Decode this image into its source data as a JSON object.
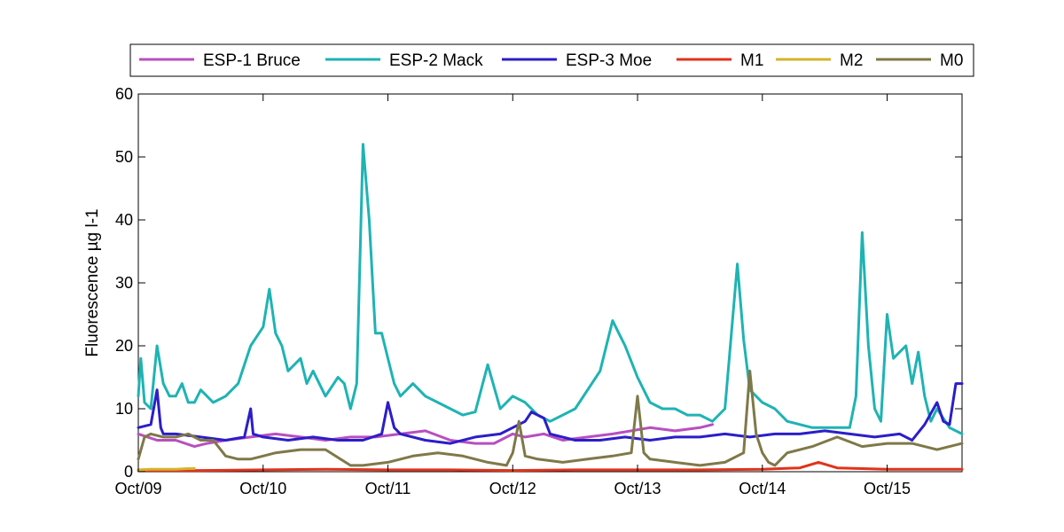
{
  "chart_data": {
    "type": "line",
    "title": "",
    "xlabel": "",
    "ylabel": "Fluorescence µg l-1",
    "ylim": [
      0,
      60
    ],
    "yticks": [
      0,
      10,
      20,
      30,
      40,
      50,
      60
    ],
    "xlim": [
      0,
      6.6
    ],
    "xtick_positions": [
      0,
      1,
      2,
      3,
      4,
      5,
      6
    ],
    "xtick_labels": [
      "Oct/09",
      "Oct/10",
      "Oct/11",
      "Oct/12",
      "Oct/13",
      "Oct/14",
      "Oct/15"
    ],
    "legend_position": "top, outside",
    "grid": false,
    "series": [
      {
        "name": "ESP-1 Bruce",
        "color": "#b84fc0",
        "x": [
          0,
          0.15,
          0.3,
          0.45,
          0.55,
          0.7,
          0.9,
          1.1,
          1.3,
          1.5,
          1.7,
          1.9,
          2.1,
          2.3,
          2.5,
          2.7,
          2.85,
          3.0,
          3.1,
          3.25,
          3.4,
          3.6,
          3.8,
          3.95,
          4.1,
          4.3,
          4.5,
          4.6
        ],
        "y": [
          6,
          5,
          5,
          4,
          4.5,
          5,
          5.5,
          6,
          5.5,
          5,
          5.5,
          5.5,
          6,
          6.5,
          5,
          4.5,
          4.5,
          6,
          5.5,
          6,
          5,
          5.5,
          6,
          6.5,
          7,
          6.5,
          7,
          7.5
        ]
      },
      {
        "name": "ESP-2 Mack",
        "color": "#1fb3b3",
        "x": [
          0,
          0.02,
          0.05,
          0.1,
          0.15,
          0.2,
          0.25,
          0.3,
          0.35,
          0.4,
          0.45,
          0.5,
          0.6,
          0.7,
          0.8,
          0.9,
          1.0,
          1.05,
          1.1,
          1.15,
          1.2,
          1.3,
          1.35,
          1.4,
          1.5,
          1.6,
          1.65,
          1.7,
          1.75,
          1.8,
          1.85,
          1.9,
          1.95,
          2.0,
          2.05,
          2.1,
          2.2,
          2.3,
          2.4,
          2.5,
          2.6,
          2.7,
          2.8,
          2.9,
          3.0,
          3.1,
          3.2,
          3.3,
          3.5,
          3.7,
          3.8,
          3.85,
          3.9,
          4.0,
          4.1,
          4.2,
          4.3,
          4.4,
          4.5,
          4.6,
          4.7,
          4.8,
          4.85,
          4.9,
          5.0,
          5.1,
          5.2,
          5.4,
          5.6,
          5.7,
          5.75,
          5.8,
          5.85,
          5.9,
          5.95,
          6.0,
          6.05,
          6.1,
          6.15,
          6.2,
          6.25,
          6.3,
          6.35,
          6.4,
          6.5,
          6.6
        ],
        "y": [
          12,
          18,
          11,
          10,
          20,
          14,
          12,
          12,
          14,
          11,
          11,
          13,
          11,
          12,
          14,
          20,
          23,
          29,
          22,
          20,
          16,
          18,
          14,
          16,
          12,
          15,
          14,
          10,
          14,
          52,
          40,
          22,
          22,
          18,
          14,
          12,
          14,
          12,
          11,
          10,
          9,
          9.5,
          17,
          10,
          12,
          11,
          9,
          8,
          10,
          16,
          24,
          22,
          20,
          15,
          11,
          10,
          10,
          9,
          9,
          8,
          10,
          33,
          21,
          13,
          11,
          10,
          8,
          7,
          7,
          7,
          12,
          38,
          20,
          10,
          8,
          25,
          18,
          19,
          20,
          14,
          19,
          12,
          8,
          10,
          7,
          6
        ]
      },
      {
        "name": "ESP-3 Moe",
        "color": "#2b1ec8",
        "x": [
          0,
          0.1,
          0.15,
          0.18,
          0.2,
          0.3,
          0.5,
          0.7,
          0.85,
          0.9,
          0.92,
          1.0,
          1.2,
          1.4,
          1.6,
          1.8,
          1.95,
          2.0,
          2.05,
          2.1,
          2.3,
          2.5,
          2.7,
          2.9,
          3.0,
          3.1,
          3.15,
          3.25,
          3.3,
          3.5,
          3.7,
          3.9,
          4.1,
          4.3,
          4.5,
          4.7,
          4.9,
          5.1,
          5.3,
          5.5,
          5.7,
          5.9,
          6.1,
          6.2,
          6.3,
          6.4,
          6.45,
          6.5,
          6.55,
          6.6
        ],
        "y": [
          7,
          7.5,
          13,
          7,
          6,
          6,
          5.5,
          5,
          5.5,
          10,
          6,
          5.5,
          5,
          5.5,
          5,
          5,
          6,
          11,
          7,
          6,
          5,
          4.5,
          5.5,
          6,
          7,
          8,
          9.5,
          8.5,
          6,
          5,
          5,
          5.5,
          5,
          5.5,
          5.5,
          6,
          5.5,
          6,
          6,
          6.5,
          6,
          5.5,
          6,
          5,
          7.5,
          11,
          8,
          7.5,
          14,
          14
        ]
      },
      {
        "name": "M1",
        "color": "#e0331b",
        "x": [
          0,
          0.5,
          1.0,
          1.5,
          2.0,
          2.5,
          3.0,
          3.5,
          4.0,
          4.5,
          5.0,
          5.3,
          5.45,
          5.6,
          5.8,
          6.0,
          6.3,
          6.6
        ],
        "y": [
          0.2,
          0.2,
          0.3,
          0.4,
          0.3,
          0.3,
          0.2,
          0.3,
          0.3,
          0.3,
          0.4,
          0.6,
          1.5,
          0.6,
          0.5,
          0.4,
          0.4,
          0.4
        ]
      },
      {
        "name": "M2",
        "color": "#d4b42a",
        "x": [
          0,
          0.1,
          0.2,
          0.3,
          0.4,
          0.45
        ],
        "y": [
          0.3,
          0.4,
          0.4,
          0.4,
          0.5,
          0.5
        ]
      },
      {
        "name": "M0",
        "color": "#7f7848",
        "x": [
          0,
          0.05,
          0.1,
          0.2,
          0.3,
          0.4,
          0.5,
          0.6,
          0.7,
          0.8,
          0.9,
          1.0,
          1.1,
          1.3,
          1.5,
          1.7,
          1.8,
          2.0,
          2.2,
          2.4,
          2.6,
          2.8,
          2.95,
          3.0,
          3.05,
          3.1,
          3.2,
          3.4,
          3.6,
          3.8,
          3.95,
          4.0,
          4.05,
          4.1,
          4.3,
          4.5,
          4.7,
          4.85,
          4.9,
          4.95,
          5.0,
          5.05,
          5.1,
          5.2,
          5.4,
          5.6,
          5.8,
          6.0,
          6.2,
          6.4,
          6.5,
          6.6
        ],
        "y": [
          2,
          5.5,
          6,
          5.5,
          5.5,
          6,
          5,
          5,
          2.5,
          2,
          2,
          2.5,
          3,
          3.5,
          3.5,
          1,
          1,
          1.5,
          2.5,
          3,
          2.5,
          1.5,
          1,
          3,
          8,
          2.5,
          2,
          1.5,
          2,
          2.5,
          3,
          12,
          3,
          2,
          1.5,
          1,
          1.5,
          3,
          16,
          6,
          3,
          1.5,
          1,
          3,
          4,
          5.5,
          4,
          4.5,
          4.5,
          3.5,
          4,
          4.5
        ]
      }
    ]
  }
}
